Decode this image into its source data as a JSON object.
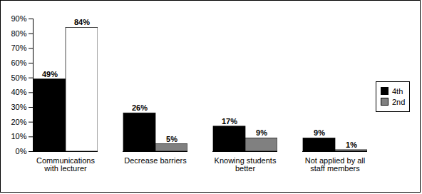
{
  "chart_data": {
    "type": "bar",
    "categories": [
      "Communications with lecturer",
      "Decrease barriers",
      "Knowing students better",
      "Not applied by all staff members"
    ],
    "series": [
      {
        "name": "4th",
        "color": "#000000",
        "values": [
          49,
          26,
          17,
          9
        ],
        "value_labels": [
          "49%",
          "26%",
          "17%",
          "9%"
        ]
      },
      {
        "name": "2nd",
        "color": "#808080",
        "colors": [
          "#ffffff",
          "#808080",
          "#808080",
          "#808080"
        ],
        "values": [
          84,
          5,
          9,
          1
        ],
        "value_labels": [
          "84%",
          "5%",
          "9%",
          "1%"
        ]
      }
    ],
    "ylim": [
      0,
      90
    ],
    "yticks": [
      {
        "value": 0,
        "label": "0%"
      },
      {
        "value": 10,
        "label": "10%"
      },
      {
        "value": 20,
        "label": "20%"
      },
      {
        "value": 30,
        "label": "30%"
      },
      {
        "value": 40,
        "label": "40%"
      },
      {
        "value": 50,
        "label": "50%"
      },
      {
        "value": 60,
        "label": "60%"
      },
      {
        "value": 70,
        "label": "70%"
      },
      {
        "value": 80,
        "label": "80%"
      },
      {
        "value": 90,
        "label": "90%"
      }
    ],
    "grid": false,
    "legend": "right",
    "data_labels": true
  }
}
